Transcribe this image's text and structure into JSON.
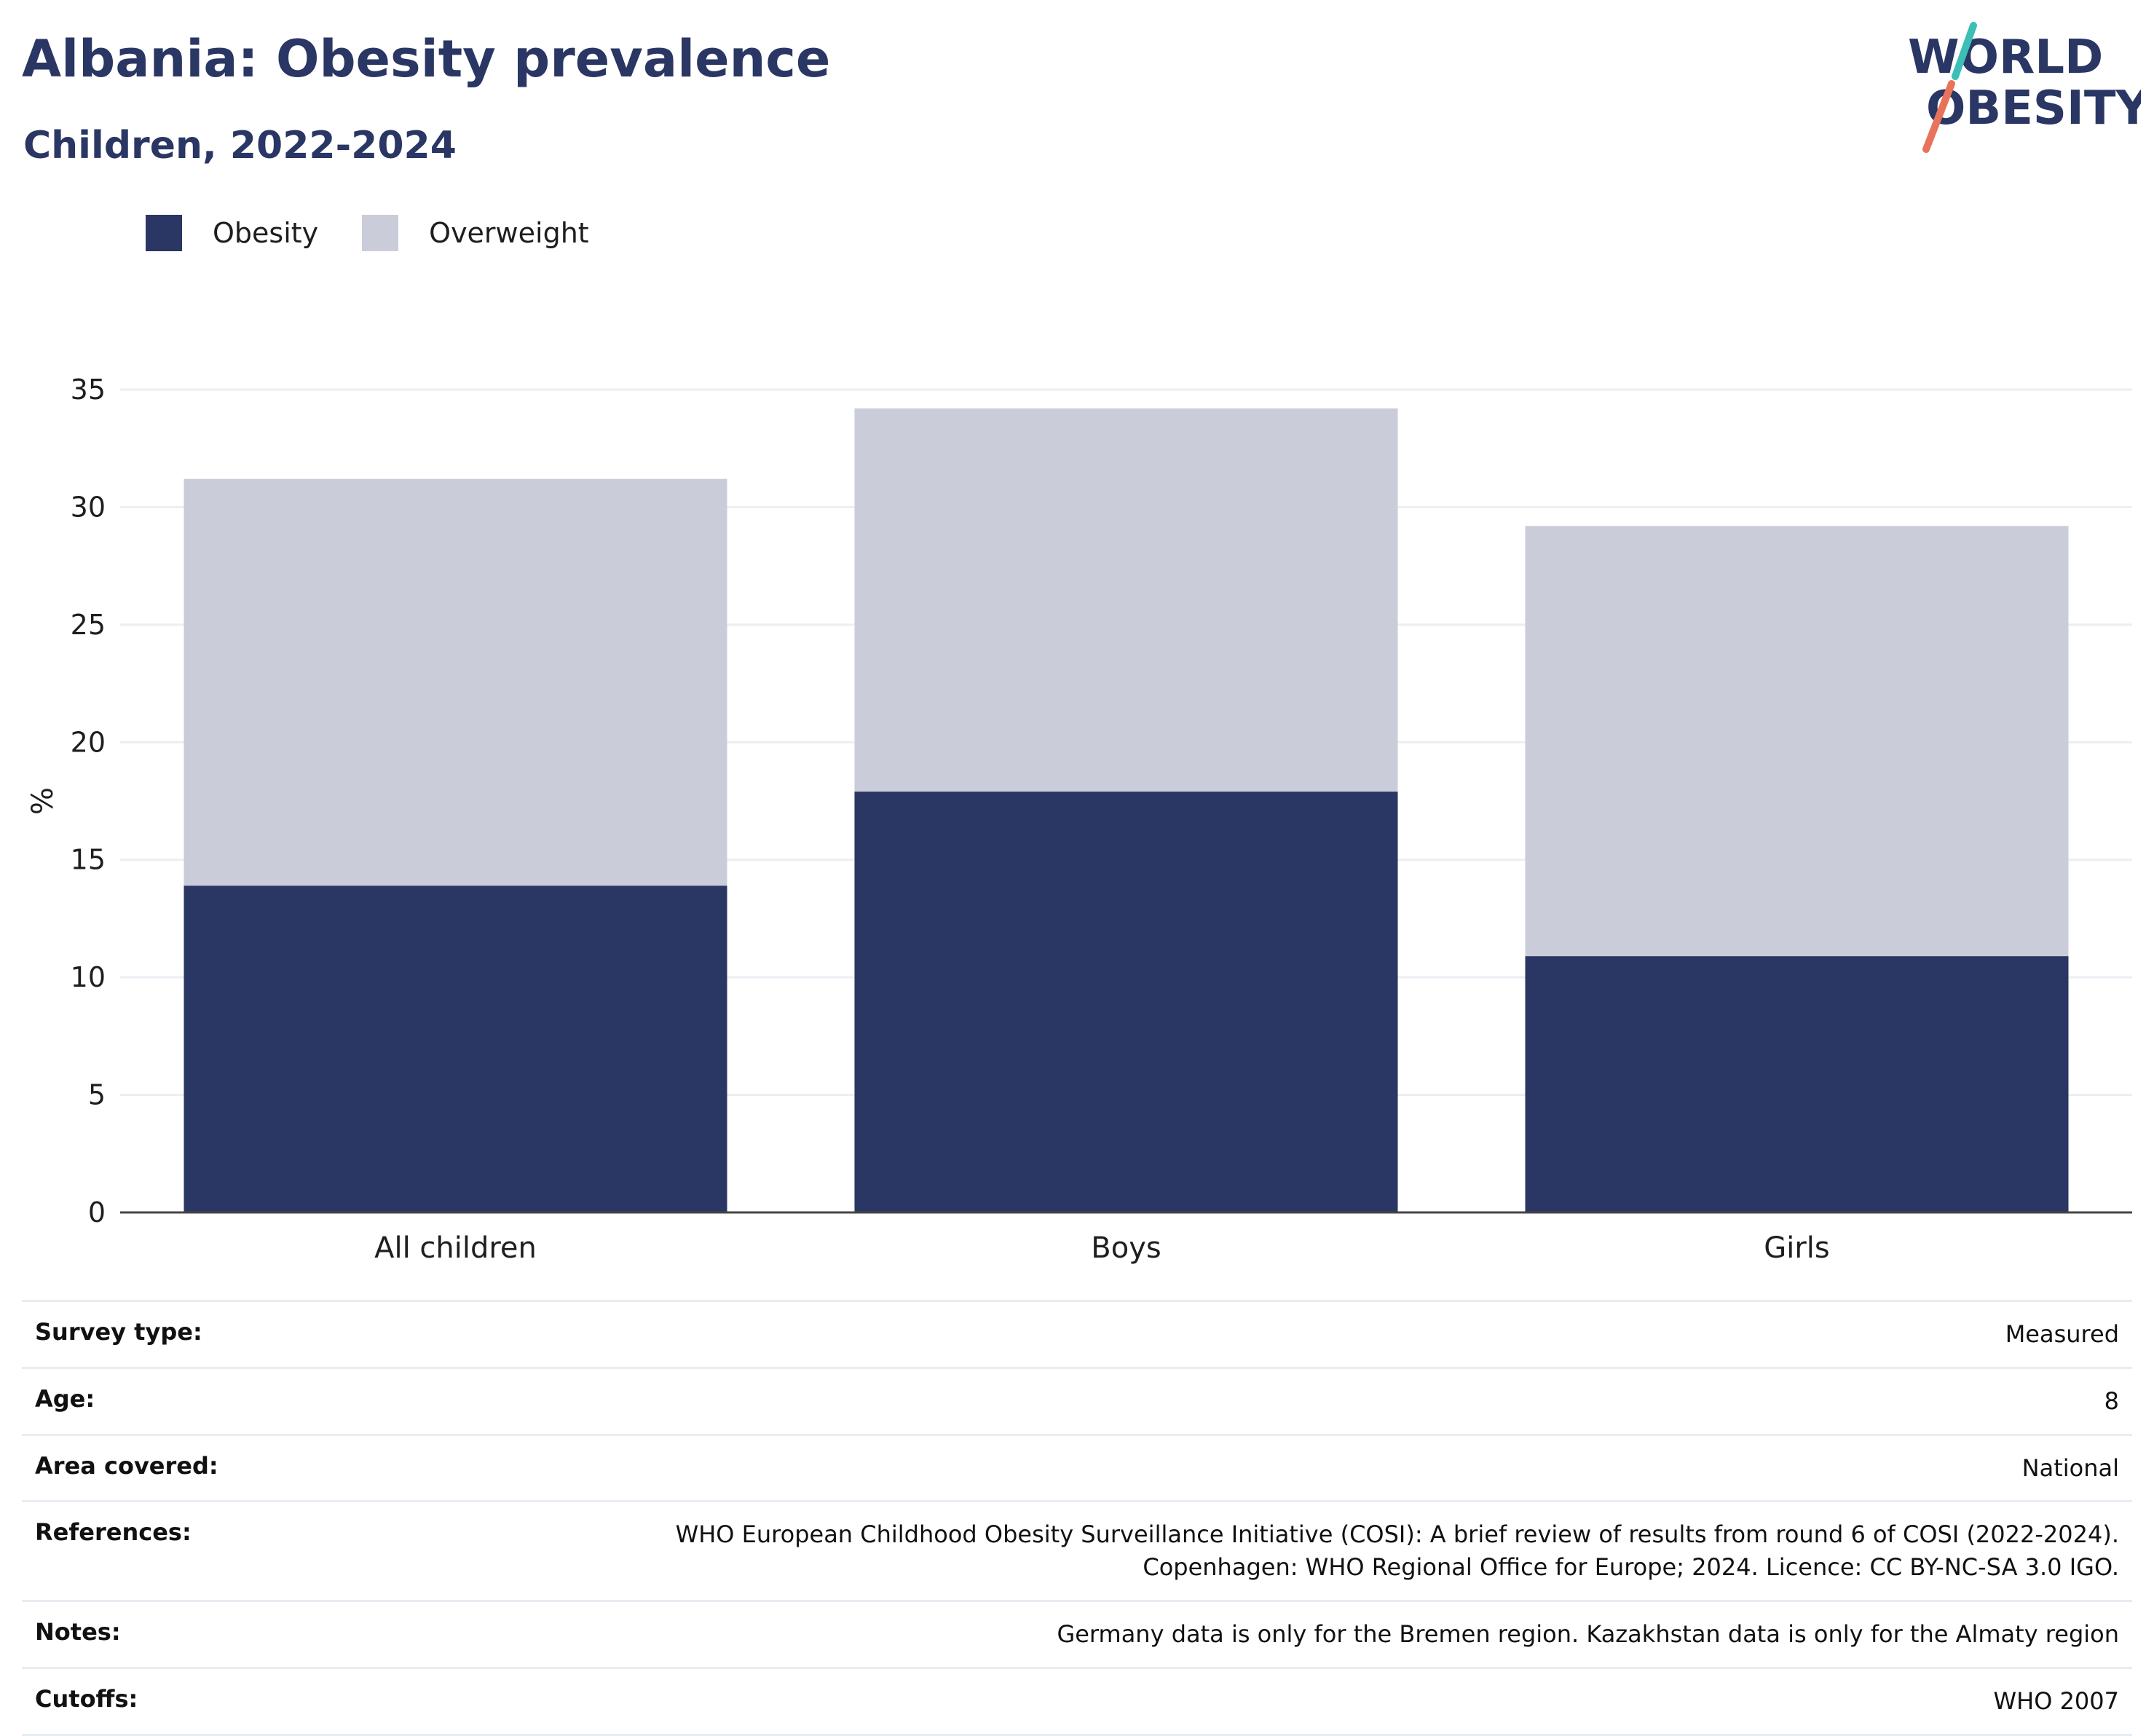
{
  "title": "Albania: Obesity prevalence",
  "subtitle": "Children, 2022-2024",
  "logo": {
    "line1": "WORLD",
    "line2": "OBESITY",
    "accent_teal": "#3bbfb6",
    "accent_coral": "#e8735a"
  },
  "colors": {
    "obesity": "#2a3663",
    "overweight": "#cacdd9",
    "text": "#2a3663"
  },
  "chart_data": {
    "type": "bar",
    "stacked": true,
    "categories": [
      "All children",
      "Boys",
      "Girls"
    ],
    "series": [
      {
        "name": "Obesity",
        "values": [
          13.9,
          17.9,
          10.9
        ]
      },
      {
        "name": "Overweight",
        "values": [
          17.3,
          16.3,
          18.3
        ]
      }
    ],
    "ylabel": "%",
    "ylim": [
      0,
      35
    ],
    "yticks": [
      0,
      5,
      10,
      15,
      20,
      25,
      30,
      35
    ],
    "grid": true,
    "legend_position": "top-left"
  },
  "meta": [
    {
      "key": "Survey type:",
      "value": [
        "Measured"
      ]
    },
    {
      "key": "Age:",
      "value": [
        "8"
      ]
    },
    {
      "key": "Area covered:",
      "value": [
        "National"
      ]
    },
    {
      "key": "References:",
      "value": [
        "WHO European Childhood Obesity Surveillance Initiative (COSI): A brief review of results from round 6 of COSI (2022-2024).",
        "Copenhagen: WHO Regional Office for Europe; 2024. Licence: CC BY-NC-SA 3.0 IGO."
      ]
    },
    {
      "key": "Notes:",
      "value": [
        "Germany data is only for the Bremen region. Kazakhstan data is only for the Almaty region"
      ]
    },
    {
      "key": "Cutoffs:",
      "value": [
        "WHO 2007"
      ]
    }
  ]
}
